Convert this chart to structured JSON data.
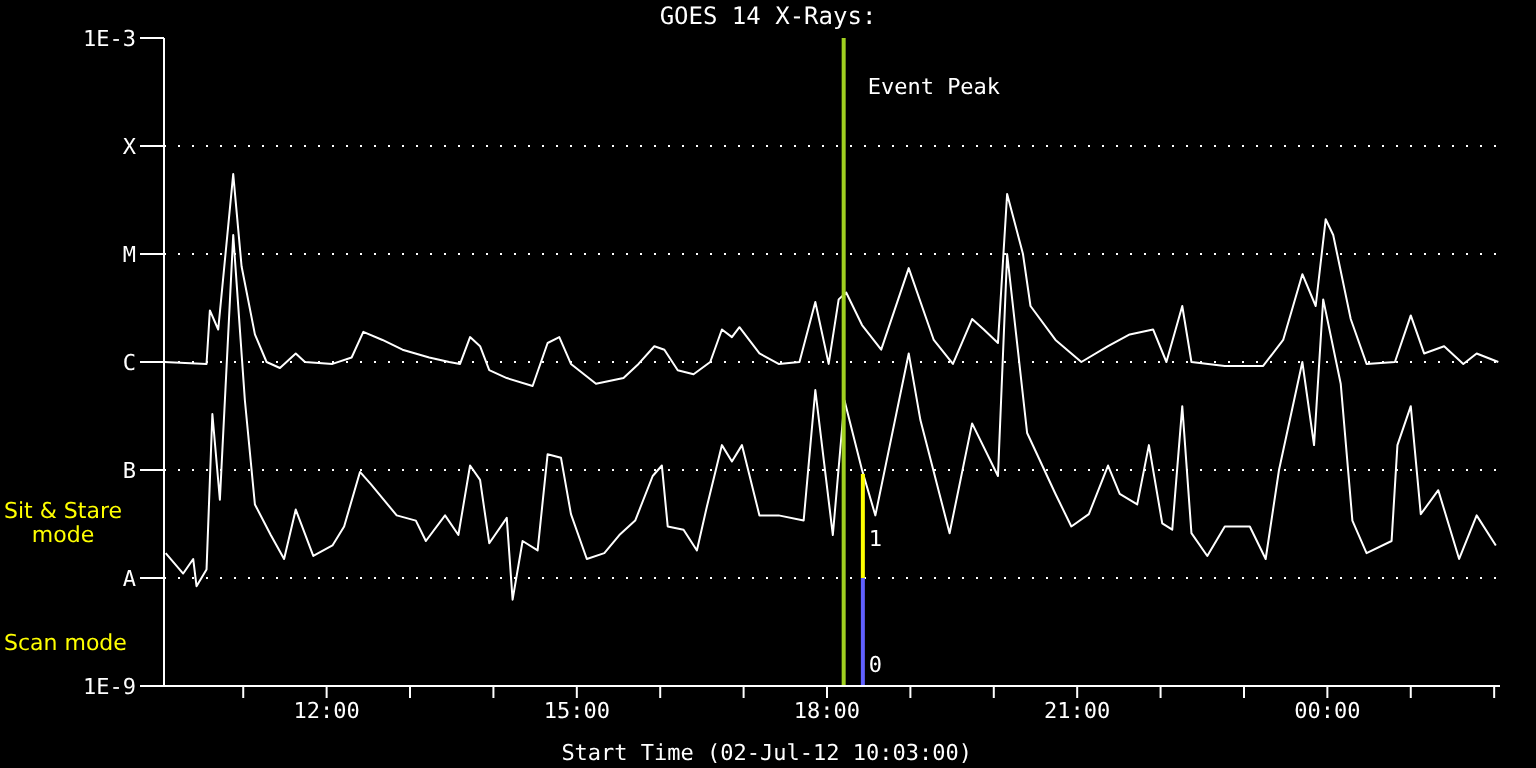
{
  "chart_data": {
    "type": "line",
    "title": "GOES 14 X-Rays:",
    "xlabel": "Start Time (02-Jul-12 10:03:00)",
    "log": "y",
    "grid": "y",
    "xlim": [
      10.05,
      26.07
    ],
    "xticks": [
      {
        "value": 11,
        "label": null
      },
      {
        "value": 12,
        "label": "12:00"
      },
      {
        "value": 13,
        "label": null
      },
      {
        "value": 14,
        "label": null
      },
      {
        "value": 15,
        "label": "15:00"
      },
      {
        "value": 16,
        "label": null
      },
      {
        "value": 17,
        "label": null
      },
      {
        "value": 18,
        "label": "18:00"
      },
      {
        "value": 19,
        "label": null
      },
      {
        "value": 20,
        "label": null
      },
      {
        "value": 21,
        "label": "21:00"
      },
      {
        "value": 22,
        "label": null
      },
      {
        "value": 23,
        "label": null
      },
      {
        "value": 24,
        "label": "00:00"
      },
      {
        "value": 25,
        "label": null
      },
      {
        "value": 26,
        "label": null
      }
    ],
    "ylim": [
      1e-09,
      0.001
    ],
    "yticks": [
      {
        "value": 1e-09,
        "label": "1E-9"
      },
      {
        "value": 1e-08,
        "label": "A"
      },
      {
        "value": 1e-07,
        "label": "B"
      },
      {
        "value": 1e-06,
        "label": "C"
      },
      {
        "value": 1e-05,
        "label": "M"
      },
      {
        "value": 0.0001,
        "label": "X"
      },
      {
        "value": 0.001,
        "label": "1E-3"
      }
    ],
    "ref_lines": [
      {
        "axis": "x",
        "value": 18.2,
        "label": "Event Peak",
        "color": "#a0d020"
      }
    ],
    "annotations": [
      "Sit & Stare mode",
      "Scan mode",
      "1",
      "0"
    ],
    "series": [
      {
        "color": "#ffffff",
        "x": [
          10.05,
          10.56,
          10.6,
          10.7,
          10.88,
          10.98,
          11.14,
          11.28,
          11.44,
          11.63,
          11.74,
          12.07,
          12.3,
          12.44,
          12.67,
          12.91,
          13.23,
          13.47,
          13.6,
          13.72,
          13.84,
          13.95,
          14.16,
          14.47,
          14.65,
          14.79,
          14.93,
          15.23,
          15.56,
          15.74,
          15.93,
          16.05,
          16.21,
          16.4,
          16.6,
          16.74,
          16.86,
          16.95,
          17.19,
          17.42,
          17.67,
          17.86,
          18.02,
          18.14,
          18.23,
          18.42,
          18.65,
          18.98,
          19.28,
          19.51,
          19.74,
          19.88,
          20.05,
          20.16,
          20.35,
          20.44,
          20.74,
          21.05,
          21.37,
          21.63,
          21.91,
          22.07,
          22.26,
          22.37,
          22.77,
          23.23,
          23.47,
          23.7,
          23.86,
          23.98,
          24.07,
          24.28,
          24.47,
          24.81,
          25.0,
          25.16,
          25.4,
          25.63,
          25.79,
          26.05
        ],
        "values": [
          1e-06,
          9.6e-07,
          3e-06,
          2e-06,
          5.5e-05,
          7.7e-06,
          1.8e-06,
          1e-06,
          8.8e-07,
          1.2e-06,
          1e-06,
          9.6e-07,
          1.1e-06,
          1.9e-06,
          1.6e-06,
          1.3e-06,
          1.1e-06,
          1e-06,
          9.6e-07,
          1.7e-06,
          1.4e-06,
          8.4e-07,
          7.1e-07,
          6e-07,
          1.5e-06,
          1.7e-06,
          9.6e-07,
          6.3e-07,
          7.1e-07,
          9.6e-07,
          1.4e-06,
          1.3e-06,
          8.4e-07,
          7.7e-07,
          1e-06,
          2e-06,
          1.7e-06,
          2.1e-06,
          1.2e-06,
          9.6e-07,
          1e-06,
          3.6e-06,
          9.6e-07,
          3.8e-06,
          4.4e-06,
          2.2e-06,
          1.3e-06,
          7.4e-06,
          1.6e-06,
          9.6e-07,
          2.5e-06,
          2e-06,
          1.5e-06,
          3.6e-05,
          1e-05,
          3.3e-06,
          1.6e-06,
          1e-06,
          1.4e-06,
          1.8e-06,
          2e-06,
          1e-06,
          3.3e-06,
          1e-06,
          9.2e-07,
          9.2e-07,
          1.6e-06,
          6.5e-06,
          3.3e-06,
          2.1e-05,
          1.5e-05,
          2.5e-06,
          9.6e-07,
          1e-06,
          2.7e-06,
          1.2e-06,
          1.4e-06,
          9.6e-07,
          1.2e-06,
          1e-06
        ]
      },
      {
        "color": "#ffffff",
        "x": [
          10.07,
          10.28,
          10.4,
          10.44,
          10.56,
          10.63,
          10.72,
          10.88,
          11.02,
          11.14,
          11.33,
          11.49,
          11.63,
          11.84,
          12.07,
          12.21,
          12.4,
          12.53,
          12.84,
          13.07,
          13.19,
          13.42,
          13.58,
          13.72,
          13.84,
          13.95,
          14.16,
          14.23,
          14.35,
          14.53,
          14.65,
          14.81,
          14.93,
          15.12,
          15.33,
          15.51,
          15.7,
          15.91,
          16.02,
          16.09,
          16.28,
          16.44,
          16.56,
          16.74,
          16.86,
          16.98,
          17.19,
          17.42,
          17.72,
          17.86,
          18.07,
          18.21,
          18.42,
          18.58,
          18.98,
          19.12,
          19.47,
          19.74,
          20.05,
          20.16,
          20.4,
          20.74,
          20.93,
          21.14,
          21.37,
          21.51,
          21.72,
          21.86,
          22.02,
          22.14,
          22.26,
          22.37,
          22.56,
          22.77,
          23.07,
          23.26,
          23.42,
          23.7,
          23.84,
          23.95,
          24.16,
          24.3,
          24.47,
          24.77,
          24.84,
          25.0,
          25.12,
          25.33,
          25.58,
          25.79,
          26.02
        ],
        "values": [
          1.7e-08,
          1.1e-08,
          1.5e-08,
          8.4e-09,
          1.2e-08,
          3.3e-07,
          5.3e-08,
          1.5e-05,
          4.4e-07,
          4.8e-08,
          2.5e-08,
          1.5e-08,
          4.3e-08,
          1.6e-08,
          2e-08,
          3e-08,
          9.6e-08,
          7.4e-08,
          3.8e-08,
          3.4e-08,
          2.2e-08,
          3.8e-08,
          2.5e-08,
          1.1e-07,
          8.1e-08,
          2.1e-08,
          3.6e-08,
          6.3e-09,
          2.2e-08,
          1.8e-08,
          1.4e-07,
          1.3e-07,
          3.9e-08,
          1.5e-08,
          1.7e-08,
          2.5e-08,
          3.4e-08,
          8.8e-08,
          1.1e-07,
          3e-08,
          2.8e-08,
          1.8e-08,
          4.6e-08,
          1.7e-07,
          1.2e-07,
          1.7e-07,
          3.8e-08,
          3.8e-08,
          3.4e-08,
          5.5e-07,
          2.5e-08,
          4.4e-07,
          1e-07,
          3.8e-08,
          1.2e-06,
          2.9e-07,
          2.6e-08,
          2.7e-07,
          8.8e-08,
          1e-05,
          2.2e-07,
          6e-08,
          3e-08,
          3.9e-08,
          1.1e-07,
          6e-08,
          4.8e-08,
          1.7e-07,
          3.2e-08,
          2.8e-08,
          3.9e-07,
          2.6e-08,
          1.6e-08,
          3e-08,
          3e-08,
          1.5e-08,
          1e-07,
          1e-06,
          1.7e-07,
          3.8e-06,
          6.3e-07,
          3.4e-08,
          1.7e-08,
          2.2e-08,
          1.7e-07,
          3.9e-07,
          3.9e-08,
          6.5e-08,
          1.5e-08,
          3.8e-08,
          2e-08
        ]
      },
      {
        "color": "#ffff00",
        "x": [
          18.43,
          18.43
        ],
        "values": [
          1e-08,
          9.2e-08
        ]
      },
      {
        "color": "#6060ff",
        "x": [
          18.43,
          18.43
        ],
        "values": [
          1e-09,
          1e-08
        ]
      }
    ]
  }
}
